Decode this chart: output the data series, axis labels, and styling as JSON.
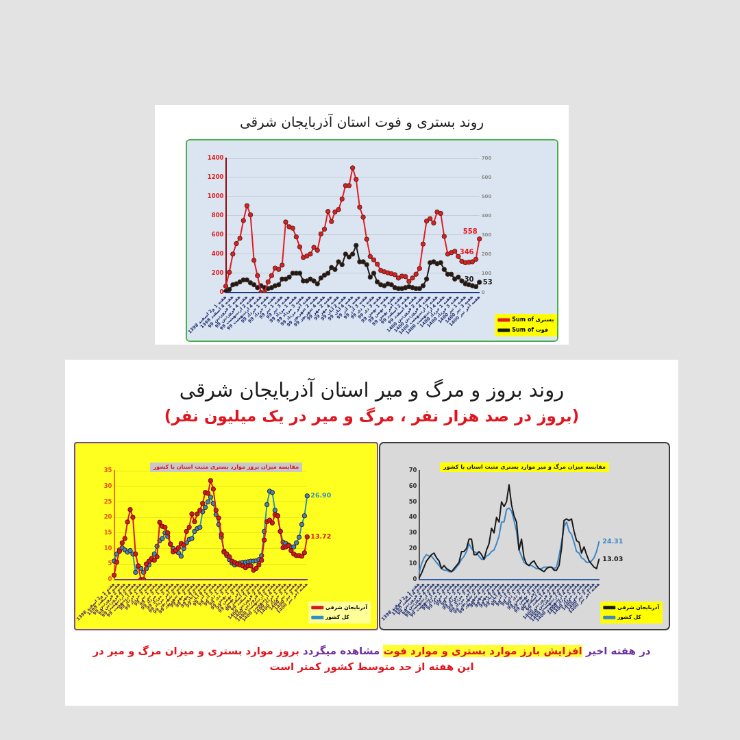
{
  "chart_data": [
    {
      "type": "line",
      "title": "روند بستری و فوت استان آذربایجان شرقی",
      "categories": [
        "هفته 1 و2 اسفند 1398",
        null,
        "هفته 4 اسفند 1398",
        null,
        "هفته 2 فروردین 99",
        null,
        "هفته 4 فروردین 99",
        null,
        "هفته 2 اردیبهشت 99",
        null,
        "هفته 4 اردیبهشت 99",
        null,
        "هفته 1 خرداد 99",
        null,
        "هفته 3 خرداد 99",
        null,
        "هفته 1 تیر 99",
        null,
        "هفته 3 تیر 99",
        null,
        "هفته 1 مرداد 99",
        null,
        "هفته 3 مرداد 99",
        null,
        "هفته آخر مرداد 99",
        null,
        "هفته 2 شهریور 99",
        null,
        "هفته 4 شهریور 99",
        null,
        "هفته 2 مهر 99",
        null,
        "هفته 4 مهر 99",
        null,
        "هفته 2 آبان 99",
        null,
        "هفته 4 آبان 99",
        null,
        "هفته 1 آذر 99",
        null,
        "هفته 3 آذر 99",
        null,
        "هفته 1 دی 99",
        null,
        "هفته 3 دی 99",
        null,
        "هفته 1 بهمن 99",
        null,
        "هفته 3 بهمن 99",
        null,
        "هفته آخر بهمن 99",
        null,
        "هفته 2 اسفند 99",
        null,
        "هفته 4 اسفند 99",
        null,
        "هفته 2 فروردین 1400",
        null,
        "هفته 4 فروردین 1400",
        null,
        "هفته 2 اردیبهشت 1400",
        null,
        "هفته 4 اردیبهشت 1400",
        null,
        "هفته 1 خرداد 1400",
        null,
        "هفته 3 خرداد 1400",
        null,
        "هفته 1 تیر 1400",
        null,
        "هفته 3 تیر 1400",
        null,
        "هفته آخر تیر 1400"
      ],
      "series": [
        {
          "name": "Sum of بستری",
          "color": "#e31b23",
          "values": [
            65,
            210,
            400,
            510,
            565,
            750,
            905,
            810,
            335,
            175,
            0,
            0,
            110,
            175,
            255,
            240,
            285,
            735,
            685,
            670,
            580,
            475,
            365,
            380,
            400,
            470,
            440,
            610,
            660,
            845,
            740,
            840,
            865,
            975,
            1115,
            1115,
            1300,
            1180,
            890,
            785,
            555,
            375,
            340,
            295,
            230,
            215,
            205,
            195,
            185,
            150,
            170,
            165,
            115,
            150,
            190,
            250,
            505,
            745,
            770,
            725,
            840,
            825,
            585,
            400,
            415,
            430,
            375,
            325,
            310,
            315,
            320,
            346,
            558
          ],
          "value_labels": [
            null,
            null,
            null,
            null,
            null,
            null,
            null,
            null,
            null,
            null,
            null,
            null,
            null,
            null,
            null,
            null,
            null,
            null,
            null,
            null,
            null,
            null,
            null,
            null,
            null,
            null,
            null,
            null,
            null,
            null,
            null,
            null,
            null,
            null,
            null,
            null,
            null,
            null,
            null,
            null,
            null,
            null,
            null,
            null,
            null,
            null,
            null,
            null,
            null,
            null,
            null,
            null,
            null,
            null,
            null,
            null,
            null,
            null,
            null,
            null,
            null,
            null,
            null,
            null,
            null,
            null,
            null,
            null,
            null,
            null,
            null,
            "346",
            "558"
          ]
        },
        {
          "name": "Sum of فوت",
          "color": "#1a1a1a",
          "axis": "y2",
          "values": [
            5,
            15,
            40,
            45,
            55,
            65,
            65,
            50,
            40,
            25,
            35,
            25,
            20,
            25,
            35,
            40,
            70,
            70,
            80,
            100,
            100,
            100,
            60,
            60,
            70,
            60,
            45,
            75,
            90,
            100,
            130,
            120,
            160,
            145,
            200,
            185,
            200,
            245,
            160,
            160,
            145,
            80,
            100,
            55,
            40,
            35,
            45,
            40,
            25,
            20,
            20,
            25,
            30,
            25,
            20,
            20,
            35,
            70,
            155,
            160,
            150,
            155,
            120,
            95,
            95,
            70,
            80,
            60,
            45,
            40,
            35,
            30,
            53
          ],
          "value_labels": [
            null,
            null,
            null,
            null,
            null,
            null,
            null,
            null,
            null,
            null,
            null,
            null,
            null,
            null,
            null,
            null,
            null,
            null,
            null,
            null,
            null,
            null,
            null,
            null,
            null,
            null,
            null,
            null,
            null,
            null,
            null,
            null,
            null,
            null,
            null,
            null,
            null,
            null,
            null,
            null,
            null,
            null,
            null,
            null,
            null,
            null,
            null,
            null,
            null,
            null,
            null,
            null,
            null,
            null,
            null,
            null,
            null,
            null,
            null,
            null,
            null,
            null,
            null,
            null,
            null,
            null,
            null,
            null,
            null,
            null,
            null,
            "30",
            "53"
          ]
        }
      ],
      "ylim": [
        0,
        1400
      ],
      "yticks": [
        0,
        200,
        400,
        600,
        800,
        1000,
        1200,
        1400
      ],
      "y2lim": [
        0,
        700
      ],
      "y2ticks": [
        0,
        100,
        200,
        300,
        400,
        500,
        600,
        700
      ],
      "grid": "y",
      "legend": "bottom right",
      "marker": "circle"
    },
    {
      "type": "other",
      "title": "روند بروز و مرگ و میر استان آذربایجان شرقی",
      "subtitle": "(بروز در صد هزار نفر ، مرگ و میر در یک میلیون نفر)"
    },
    {
      "type": "line",
      "title": "مقایسه میزان بروز موارد بستری مثبت استان با کشور",
      "categories": [
        "هفته 1 و2 اسفند 1398",
        null,
        "هفته 4 اسفند 1398",
        null,
        "هفته 2 فروردین 99",
        null,
        "هفته 4 فروردین 99",
        null,
        "هفته 2 اردیبهشت 99",
        null,
        "هفته 4 اردیبهشت 99",
        null,
        "هفته 1 خرداد 99",
        null,
        "هفته 3 خرداد 99",
        null,
        "هفته 1 تیر 99",
        null,
        "هفته 3 تیر 99",
        null,
        "هفته 1 مرداد 99",
        null,
        "هفته 3 مرداد 99",
        null,
        "هفته آخر مرداد 99",
        null,
        "هفته 2 شهریور 99",
        null,
        "هفته 4 شهریور 99",
        null,
        "هفته 2 مهر 99",
        null,
        "هفته 4 مهر 99",
        null,
        "هفته 2 آبان 99",
        null,
        "هفته 4 آبان 99",
        null,
        "هفته 1 آذر 99",
        null,
        "هفته 3 آذر 99",
        null,
        "هفته 1 دی 99",
        null,
        "هفته 3 دی 99",
        null,
        "هفته 1 بهمن 99",
        null,
        "هفته 3 بهمن 99",
        null,
        "هفته آخر بهمن 99",
        null,
        "هفته 2 اسفند 99",
        null,
        "هفته 4 اسفند 99",
        null,
        "هفته 2 فروردین 1400",
        null,
        "هفته 4 فروردین 1400",
        null,
        "هفته 2 اردیبهشت 1400",
        null,
        "هفته 4 اردیبهشت 1400",
        null,
        "هفته 1 خرداد 1400",
        null,
        "هفته 3 خرداد 1400",
        null,
        "هفته 1 تیر 1400",
        null,
        "هفته 3 تیر 1400",
        null,
        "هفته آخر تیر 1400"
      ],
      "series": [
        {
          "name": "آذربایجان شرقی",
          "color": "#d7191f",
          "values": [
            1.4,
            5.6,
            9.1,
            11.8,
            13.2,
            18.5,
            22.5,
            20.0,
            8.2,
            4.4,
            0,
            0,
            5.0,
            5.9,
            6.8,
            6.2,
            7.3,
            18.4,
            17.1,
            16.8,
            15.0,
            11.4,
            8.9,
            9.3,
            10.2,
            11.6,
            11.1,
            15.5,
            16.8,
            21.1,
            18.6,
            21.1,
            22.3,
            24.5,
            28.0,
            27.7,
            31.8,
            29.1,
            22.3,
            19.8,
            14.5,
            8.8,
            8.2,
            7.3,
            5.9,
            5.5,
            5.0,
            4.7,
            4.4,
            3.8,
            4.4,
            4.4,
            3.0,
            3.6,
            4.7,
            6.2,
            12.7,
            18.6,
            19.1,
            18.2,
            20.9,
            20.5,
            15.5,
            10.2,
            10.5,
            10.9,
            9.3,
            8.2,
            7.7,
            7.7,
            7.5,
            8.6,
            13.72
          ],
          "value_labels": [
            null,
            null,
            null,
            null,
            null,
            null,
            null,
            null,
            null,
            null,
            null,
            null,
            null,
            null,
            null,
            null,
            null,
            null,
            null,
            null,
            null,
            null,
            null,
            null,
            null,
            null,
            null,
            null,
            null,
            null,
            null,
            null,
            null,
            null,
            null,
            null,
            null,
            null,
            null,
            null,
            null,
            null,
            null,
            null,
            null,
            null,
            null,
            null,
            null,
            null,
            null,
            null,
            null,
            null,
            null,
            null,
            null,
            null,
            null,
            null,
            null,
            null,
            null,
            null,
            null,
            null,
            null,
            null,
            null,
            null,
            null,
            null,
            "13.72"
          ]
        },
        {
          "name": "کل کشور",
          "color": "#2e8fc0",
          "values": [
            5.9,
            8.2,
            9.5,
            10.2,
            9.5,
            8.8,
            9.3,
            8.2,
            2.3,
            4.1,
            3.6,
            2.3,
            3.5,
            4.7,
            6.4,
            8.2,
            10.7,
            12.5,
            13.2,
            15.0,
            13.8,
            11.4,
            10.0,
            9.3,
            8.6,
            7.5,
            10.0,
            11.8,
            12.9,
            13.2,
            15.5,
            16.4,
            16.8,
            21.8,
            23.2,
            25.0,
            26.5,
            24.5,
            20.9,
            17.7,
            13.6,
            9.1,
            7.7,
            6.4,
            5.3,
            4.7,
            5.0,
            5.3,
            5.5,
            5.6,
            5.7,
            5.9,
            5.9,
            6.0,
            6.4,
            7.7,
            15.5,
            24.1,
            28.4,
            28.0,
            22.3,
            20.5,
            15.5,
            12.0,
            11.6,
            11.1,
            10.5,
            10.5,
            11.8,
            13.6,
            17.7,
            20.5,
            26.9
          ],
          "value_labels": [
            null,
            null,
            null,
            null,
            null,
            null,
            null,
            null,
            null,
            null,
            null,
            null,
            null,
            null,
            null,
            null,
            null,
            null,
            null,
            null,
            null,
            null,
            null,
            null,
            null,
            null,
            null,
            null,
            null,
            null,
            null,
            null,
            null,
            null,
            null,
            null,
            null,
            null,
            null,
            null,
            null,
            null,
            null,
            null,
            null,
            null,
            null,
            null,
            null,
            null,
            null,
            null,
            null,
            null,
            null,
            null,
            null,
            null,
            null,
            null,
            null,
            null,
            null,
            null,
            null,
            null,
            null,
            null,
            null,
            null,
            null,
            null,
            "26.90"
          ]
        }
      ],
      "ylim": [
        0,
        35
      ],
      "yticks": [
        0,
        5,
        10,
        15,
        20,
        25,
        30,
        35
      ],
      "grid": "y",
      "legend": "bottom right",
      "marker": "circle"
    },
    {
      "type": "line",
      "title": "مقایسه میزان مرگ و میر موارد بستری مثبت استان با کشور",
      "categories": [
        "هفته 1 و2 اسفند 1398",
        null,
        "هفته 4 اسفند 1398",
        null,
        "هفته 2 فروردین 99",
        null,
        "هفته 4 فروردین 99",
        null,
        "هفته 2 اردیبهشت 99",
        null,
        "هفته 4 اردیبهشت 99",
        null,
        "هفته 1 خرداد 99",
        null,
        "هفته 3 خرداد 99",
        null,
        "هفته 1 تیر 99",
        null,
        "هفته 3 تیر 99",
        null,
        "هفته 1 مرداد 99",
        null,
        "هفته 3 مرداد 99",
        null,
        "هفته آخر مرداد 99",
        null,
        "هفته 2 شهریور 99",
        null,
        "هفته 4 شهریور 99",
        null,
        "هفته 2 مهر 99",
        null,
        "هفته 4 مهر 99",
        null,
        "هفته 2 آبان 99",
        null,
        "هفته 4 آبان 99",
        null,
        "هفته 1 آذر 99",
        null,
        "هفته 3 آذر 99",
        null,
        "هفته 1 دی 99",
        null,
        "هفته 3 دی 99",
        null,
        "هفته 1 بهمن 99",
        null,
        "هفته 3 بهمن 99",
        null,
        "هفته آخر بهمن 99",
        null,
        "هفته 2 اسفند 99",
        null,
        "هفته 4 اسفند 99",
        null,
        "هفته 2 فروردین 1400",
        null,
        "هفته 4 فروردین 1400",
        null,
        "هفته 2 اردیبهشت 1400",
        null,
        "هفته 4 اردیبهشت 1400",
        null,
        "هفته 1 خرداد 1400",
        null,
        "هفته 3 خرداد 1400",
        null,
        "هفته 1 تیر 1400",
        null,
        "هفته 3 تیر 1400",
        null,
        "هفته آخر تیر 1400"
      ],
      "series": [
        {
          "name": "آذربایجان شرقی",
          "color": "#1a1a1a",
          "values": [
            1,
            4,
            8,
            12,
            14,
            16,
            17,
            14,
            12,
            7,
            9,
            7,
            6,
            5,
            7,
            9,
            11,
            18,
            18,
            20,
            26,
            26,
            16,
            16,
            18,
            16,
            13,
            19,
            23,
            33,
            30,
            40,
            37,
            50,
            47,
            50,
            61,
            48,
            41,
            37,
            19,
            26,
            14,
            10,
            9,
            11,
            12,
            9,
            7,
            6,
            5,
            7,
            8,
            8,
            6,
            6,
            9,
            20,
            38,
            39,
            38,
            39,
            31,
            25,
            24,
            17,
            21,
            16,
            12,
            10,
            8,
            7,
            13.03
          ],
          "value_labels": [
            null,
            null,
            null,
            null,
            null,
            null,
            null,
            null,
            null,
            null,
            null,
            null,
            null,
            null,
            null,
            null,
            null,
            null,
            null,
            null,
            null,
            null,
            null,
            null,
            null,
            null,
            null,
            null,
            null,
            null,
            null,
            null,
            null,
            null,
            null,
            null,
            null,
            null,
            null,
            null,
            null,
            null,
            null,
            null,
            null,
            null,
            null,
            null,
            null,
            null,
            null,
            null,
            null,
            null,
            null,
            null,
            null,
            null,
            null,
            null,
            null,
            null,
            null,
            null,
            null,
            null,
            null,
            null,
            null,
            null,
            null,
            null,
            "13.03"
          ]
        },
        {
          "name": "کل کشور",
          "color": "#3f86c8",
          "values": [
            4,
            10,
            14,
            16,
            15,
            15,
            13,
            11,
            9,
            7,
            6,
            6,
            5,
            5,
            6,
            8,
            10,
            13,
            15,
            18,
            23,
            20,
            18,
            17,
            15,
            13,
            13,
            15,
            16,
            18,
            19,
            23,
            28,
            37,
            37,
            45,
            46,
            44,
            38,
            31,
            19,
            15,
            11,
            10,
            9,
            9,
            8,
            7,
            7,
            7,
            8,
            8,
            8,
            8,
            7,
            8,
            15,
            24,
            34,
            37,
            31,
            29,
            24,
            18,
            17,
            14,
            13,
            11,
            11,
            12,
            14,
            18,
            24.31
          ],
          "value_labels": [
            null,
            null,
            null,
            null,
            null,
            null,
            null,
            null,
            null,
            null,
            null,
            null,
            null,
            null,
            null,
            null,
            null,
            null,
            null,
            null,
            null,
            null,
            null,
            null,
            null,
            null,
            null,
            null,
            null,
            null,
            null,
            null,
            null,
            null,
            null,
            null,
            null,
            null,
            null,
            null,
            null,
            null,
            null,
            null,
            null,
            null,
            null,
            null,
            null,
            null,
            null,
            null,
            null,
            null,
            null,
            null,
            null,
            null,
            null,
            null,
            null,
            null,
            null,
            null,
            null,
            null,
            null,
            null,
            null,
            null,
            null,
            null,
            "24.31"
          ]
        }
      ],
      "ylim": [
        0,
        70
      ],
      "yticks": [
        0,
        10,
        20,
        30,
        40,
        50,
        60,
        70
      ],
      "legend": "bottom right",
      "marker": "none"
    },
    {
      "type": "other",
      "annotations": [
        "در هفته اخیر",
        "افزایش بارز موارد بستری و موارد فوت",
        "مشاهده میگردد",
        "بروز موارد بستری و میزان مرگ و میر در",
        "این هفته از حد متوسط کشور کمتر است"
      ]
    }
  ]
}
